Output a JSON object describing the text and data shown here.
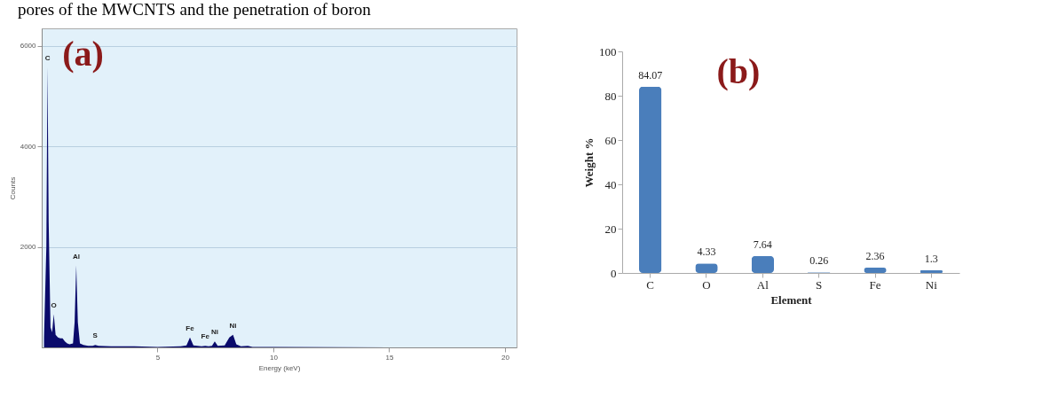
{
  "chart_data": [
    {
      "type": "area",
      "title": "(a)",
      "xlabel": "Energy (keV)",
      "ylabel": "Counts",
      "x": [
        0.1,
        0.2,
        0.25,
        0.3,
        0.38,
        0.45,
        0.52,
        0.6,
        0.7,
        0.8,
        0.9,
        1.0,
        1.1,
        1.2,
        1.35,
        1.42,
        1.49,
        1.56,
        1.65,
        1.8,
        2.0,
        2.2,
        2.31,
        2.45,
        3,
        4,
        5,
        6,
        6.25,
        6.4,
        6.55,
        6.9,
        7.06,
        7.2,
        7.35,
        7.47,
        7.6,
        7.9,
        8.1,
        8.26,
        8.4,
        8.6,
        8.9,
        9.1,
        10,
        15,
        20,
        20.5
      ],
      "series": [
        {
          "color": "#0b0b6b",
          "values": [
            200,
            2000,
            5580,
            2500,
            400,
            300,
            660,
            250,
            200,
            180,
            180,
            120,
            80,
            60,
            80,
            500,
            1630,
            500,
            80,
            50,
            30,
            30,
            50,
            30,
            20,
            20,
            10,
            20,
            40,
            200,
            40,
            20,
            30,
            20,
            30,
            120,
            30,
            40,
            200,
            250,
            60,
            20,
            30,
            10,
            10,
            0,
            0,
            0
          ]
        }
      ],
      "xlim": [
        0,
        20.5
      ],
      "xticks": [
        5,
        10,
        15,
        20
      ],
      "ylim": [
        0,
        6350
      ],
      "yticks": [
        2000,
        4000,
        6000
      ],
      "grid": "y",
      "annotations": [
        "pores of the MWCNTS and the penetration of boron",
        {
          "text": "C",
          "x": 0.25,
          "y": 5580
        },
        {
          "text": "O",
          "x": 0.52,
          "y": 660
        },
        {
          "text": "Al",
          "x": 1.49,
          "y": 1630
        },
        {
          "text": "S",
          "x": 2.31,
          "y": 45
        },
        {
          "text": "Fe",
          "x": 6.4,
          "y": 195
        },
        {
          "text": "Fe",
          "x": 7.06,
          "y": 30
        },
        {
          "text": "Ni",
          "x": 7.47,
          "y": 120
        },
        {
          "text": "Ni",
          "x": 8.26,
          "y": 250
        }
      ]
    },
    {
      "type": "bar",
      "title": "(b)",
      "xlabel": "Element",
      "ylabel": "Weight %",
      "categories": [
        "C",
        "O",
        "Al",
        "S",
        "Fe",
        "Ni"
      ],
      "values": [
        84.07,
        4.33,
        7.64,
        0.26,
        2.36,
        1.3
      ],
      "color": "#4a7ebb",
      "ylim": [
        0,
        100
      ],
      "yticks": [
        0,
        20,
        40,
        60,
        80,
        100
      ],
      "data_labels": true
    }
  ]
}
